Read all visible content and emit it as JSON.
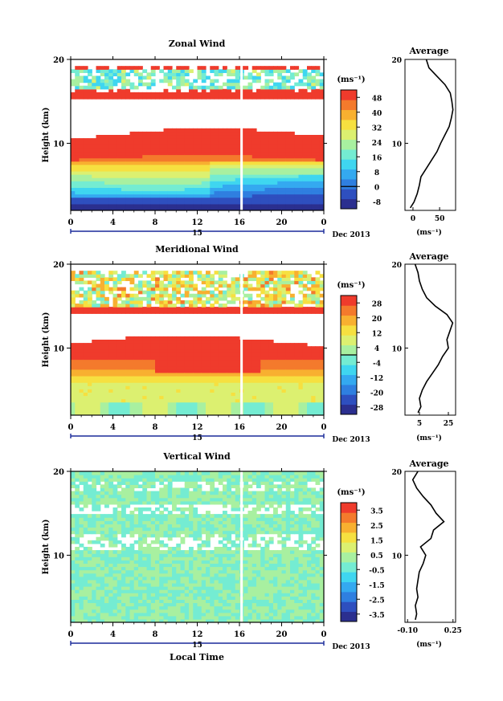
{
  "figure": {
    "xlabel": "Local Time",
    "date_label": "Dec 2013",
    "day_label": "15",
    "height_label": "Height (km)",
    "avg_title": "Average",
    "colorbar_unit": "(ms⁻¹)"
  },
  "colormap": [
    "#2b2f8f",
    "#2e4fbf",
    "#2f7fe0",
    "#34a9f0",
    "#3fd6f0",
    "#74ecd2",
    "#a8f0a0",
    "#dcf070",
    "#f6e040",
    "#f8b030",
    "#f47a2c",
    "#ef3b2c"
  ],
  "chart_data": [
    {
      "type": "heatmap",
      "name": "zonal",
      "title": "Zonal Wind",
      "x_ticks": [
        "0",
        "4",
        "8",
        "12",
        "16",
        "20",
        "0"
      ],
      "xlim": [
        0,
        24
      ],
      "y_ticks": [
        "10",
        "20"
      ],
      "ylim": [
        2,
        20
      ],
      "ylabel": "Height (km)",
      "colorbar_ticks": [
        "48",
        "40",
        "32",
        "24",
        "16",
        "8",
        "0",
        "-8"
      ],
      "colorbar_range": [
        -12,
        52
      ],
      "gap_hour": 16.2,
      "profile": {
        "title": "Average",
        "x_ticks": [
          "0",
          "50"
        ],
        "xlim": [
          -15,
          80
        ],
        "y_ticks": [
          "10",
          "20"
        ],
        "unit": "(ms⁻¹)",
        "points": [
          [
            -5,
            2.3
          ],
          [
            2,
            3.0
          ],
          [
            8,
            4.0
          ],
          [
            12,
            5.0
          ],
          [
            15,
            6.0
          ],
          [
            25,
            7.0
          ],
          [
            35,
            8.0
          ],
          [
            45,
            9.0
          ],
          [
            52,
            10.0
          ],
          [
            60,
            11.0
          ],
          [
            68,
            12.0
          ],
          [
            72,
            13.0
          ],
          [
            75,
            14.0
          ],
          [
            73,
            15.0
          ],
          [
            70,
            16.0
          ],
          [
            60,
            17.0
          ],
          [
            45,
            18.0
          ],
          [
            30,
            19.0
          ],
          [
            25,
            20.0
          ]
        ]
      }
    },
    {
      "type": "heatmap",
      "name": "meridional",
      "title": "Meridional Wind",
      "x_ticks": [
        "0",
        "4",
        "8",
        "12",
        "16",
        "20",
        "0"
      ],
      "xlim": [
        0,
        24
      ],
      "y_ticks": [
        "10",
        "20"
      ],
      "ylim": [
        2,
        20
      ],
      "ylabel": "Height (km)",
      "colorbar_ticks": [
        "28",
        "20",
        "12",
        "4",
        "-4",
        "-12",
        "-20",
        "-28"
      ],
      "colorbar_range": [
        -32,
        32
      ],
      "gap_hour": 16.2,
      "profile": {
        "title": "Average",
        "x_ticks": [
          "5",
          "25"
        ],
        "xlim": [
          -5,
          30
        ],
        "y_ticks": [
          "10",
          "20"
        ],
        "unit": "(ms⁻¹)",
        "points": [
          [
            4,
            2.3
          ],
          [
            6,
            3.0
          ],
          [
            5,
            4.0
          ],
          [
            7,
            5.0
          ],
          [
            10,
            6.0
          ],
          [
            14,
            7.0
          ],
          [
            18,
            8.0
          ],
          [
            21,
            9.0
          ],
          [
            25,
            10.0
          ],
          [
            24,
            11.0
          ],
          [
            26,
            12.0
          ],
          [
            28,
            13.0
          ],
          [
            24,
            14.0
          ],
          [
            16,
            15.0
          ],
          [
            10,
            16.0
          ],
          [
            7,
            17.0
          ],
          [
            5,
            18.0
          ],
          [
            4,
            19.0
          ],
          [
            2,
            20.0
          ]
        ]
      }
    },
    {
      "type": "heatmap",
      "name": "vertical",
      "title": "Vertical Wind",
      "x_ticks": [
        "0",
        "4",
        "8",
        "12",
        "16",
        "20",
        "0"
      ],
      "xlim": [
        0,
        24
      ],
      "y_ticks": [
        "10",
        "20"
      ],
      "ylim": [
        2,
        20
      ],
      "ylabel": "Height (km)",
      "colorbar_ticks": [
        "3.5",
        "2.5",
        "1.5",
        "0.5",
        "-0.5",
        "-1.5",
        "-2.5",
        "-3.5"
      ],
      "colorbar_range": [
        -4,
        4
      ],
      "gap_hour": 16.2,
      "profile": {
        "title": "Average",
        "x_ticks": [
          "-0.10",
          "0.25"
        ],
        "xlim": [
          -0.12,
          0.27
        ],
        "y_ticks": [
          "10",
          "20"
        ],
        "unit": "(ms⁻¹)",
        "points": [
          [
            -0.04,
            2.3
          ],
          [
            -0.03,
            3.0
          ],
          [
            -0.04,
            4.0
          ],
          [
            -0.02,
            5.0
          ],
          [
            -0.03,
            6.0
          ],
          [
            -0.02,
            7.0
          ],
          [
            -0.01,
            8.0
          ],
          [
            0.02,
            9.0
          ],
          [
            0.04,
            10.0
          ],
          [
            0.0,
            11.0
          ],
          [
            0.08,
            12.0
          ],
          [
            0.1,
            13.0
          ],
          [
            0.18,
            14.0
          ],
          [
            0.12,
            15.0
          ],
          [
            0.08,
            16.0
          ],
          [
            0.02,
            17.0
          ],
          [
            -0.03,
            18.0
          ],
          [
            -0.06,
            19.0
          ],
          [
            -0.02,
            20.0
          ]
        ]
      }
    }
  ]
}
